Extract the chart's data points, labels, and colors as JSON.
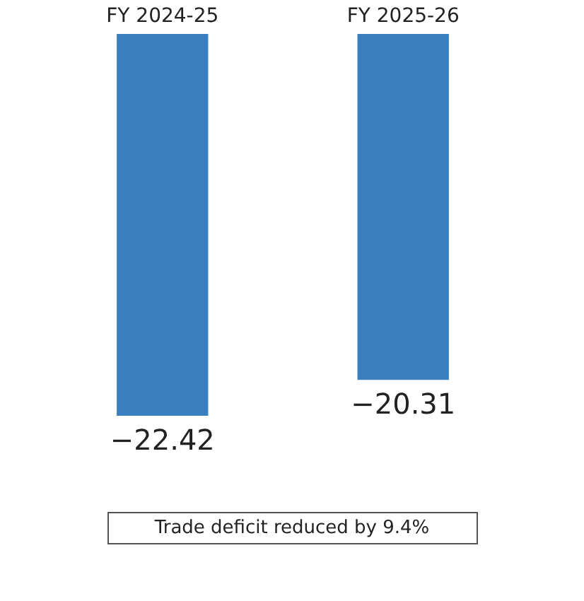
{
  "chart_data": {
    "type": "bar",
    "categories": [
      "FY 2024-25",
      "FY 2025-26"
    ],
    "values": [
      -22.42,
      -20.31
    ],
    "color": "#3a7fbf",
    "data_labels": true,
    "grid": false,
    "annotations": [
      "Trade deficit reduced by 9.4%"
    ]
  }
}
